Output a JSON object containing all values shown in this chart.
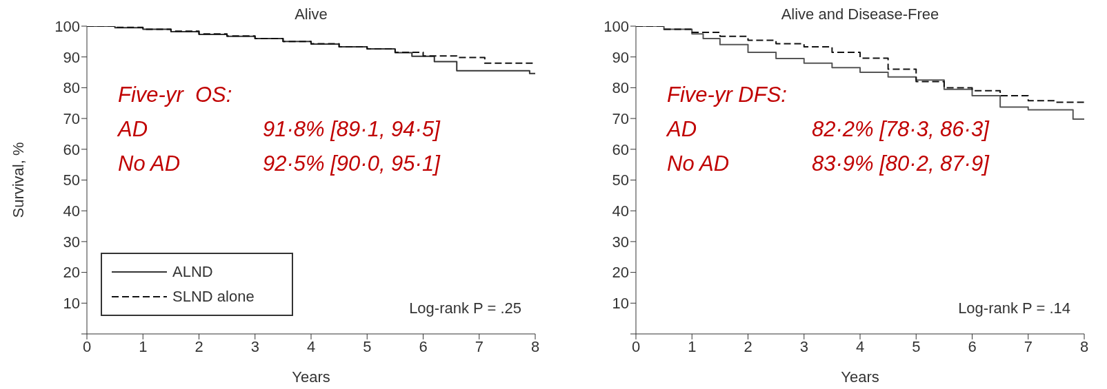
{
  "chart_data": [
    {
      "type": "step",
      "title": "Alive",
      "xlabel": "Years",
      "ylabel": "Survival, %",
      "xlim": [
        0,
        8
      ],
      "xticks": [
        0,
        1,
        2,
        3,
        4,
        5,
        6,
        7,
        8
      ],
      "ylim": [
        0,
        100
      ],
      "yticks": [
        {
          "value": 0,
          "label": null
        },
        10,
        20,
        30,
        40,
        50,
        60,
        70,
        80,
        90,
        100
      ],
      "grid": false,
      "legend": "bottom left",
      "marker": "none",
      "series": [
        {
          "name": "ALND",
          "color": "#333333",
          "line_style": "solid",
          "x": [
            0,
            0.5,
            1,
            1.5,
            2,
            2.5,
            3,
            3.5,
            4,
            4.5,
            5,
            5.5,
            5.8,
            6.2,
            6.6,
            7.9,
            8
          ],
          "values": [
            100,
            99.5,
            99,
            98.2,
            97.3,
            96.7,
            96,
            95,
            94.2,
            93.3,
            92.6,
            91.4,
            90.2,
            88.5,
            85.5,
            84.6,
            84.6
          ]
        },
        {
          "name": "SLND alone",
          "color": "#111111",
          "line_style": "dashed",
          "x": [
            0,
            0.5,
            1,
            1.5,
            2,
            2.5,
            3,
            3.5,
            4,
            4.5,
            5,
            5.5,
            6,
            6.6,
            7.1,
            8
          ],
          "values": [
            100,
            99.6,
            99,
            98.4,
            97.5,
            96.8,
            96,
            95,
            94.3,
            93.3,
            92.6,
            91.5,
            90.3,
            89.8,
            88,
            88
          ]
        }
      ],
      "annotations": [
        "Five-yr  OS:",
        "AD",
        "91·8% [89·1, 94·5]",
        "No AD",
        "92·5% [90·0, 95·1]",
        "Log-rank P = .25"
      ]
    },
    {
      "type": "step",
      "title": "Alive and Disease-Free",
      "xlabel": "Years",
      "xlim": [
        0,
        8
      ],
      "xticks": [
        0,
        1,
        2,
        3,
        4,
        5,
        6,
        7,
        8
      ],
      "ylim": [
        0,
        100
      ],
      "yticks": [
        {
          "value": 0,
          "label": null
        },
        10,
        20,
        30,
        40,
        50,
        60,
        70,
        80,
        90,
        100
      ],
      "grid": false,
      "legend": false,
      "marker": "none",
      "series": [
        {
          "color": "#555555",
          "line_style": "solid",
          "x": [
            0,
            0.5,
            1,
            1.2,
            1.5,
            2,
            2.5,
            3,
            3.5,
            4,
            4.5,
            5,
            5.5,
            6,
            6.5,
            7,
            7.8,
            8
          ],
          "values": [
            100,
            99,
            97.5,
            96,
            94,
            91.5,
            89.5,
            88,
            86.5,
            85,
            83.5,
            82.5,
            79.5,
            77.4,
            73.7,
            72.8,
            69.8,
            69.8
          ]
        },
        {
          "color": "#111111",
          "line_style": "dashed",
          "x": [
            0,
            0.5,
            1,
            1.5,
            2,
            2.5,
            3,
            3.5,
            4,
            4.5,
            5,
            5.5,
            6,
            6.5,
            7,
            7.5,
            8
          ],
          "values": [
            100,
            99,
            98,
            96.7,
            95.4,
            94.3,
            93.3,
            91.5,
            89.6,
            86,
            82,
            80,
            79,
            77.4,
            75.8,
            75.3,
            75
          ]
        }
      ],
      "annotations": [
        "Five-yr DFS:",
        "AD",
        "82·2% [78·3, 86·3]",
        "No AD",
        "83·9% [80·2, 87·9]",
        "Log-rank P = .14"
      ]
    }
  ]
}
